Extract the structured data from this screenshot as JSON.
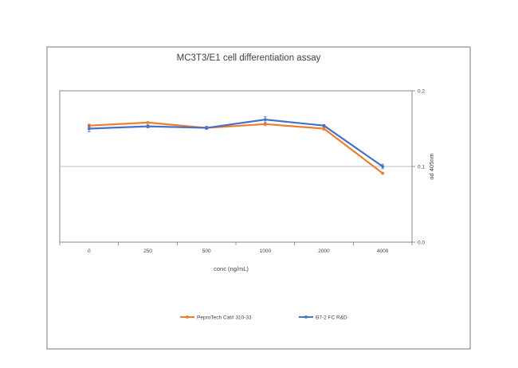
{
  "chart_data": {
    "type": "line",
    "title": "MC3T3/E1 cell differentiation assay",
    "xlabel": "conc (ng/mL)",
    "ylabel": "od 405nm",
    "categories": [
      "0",
      "250",
      "500",
      "1000",
      "2000",
      "4000"
    ],
    "y_ticks": [
      "0.0",
      "0.1",
      "0.2"
    ],
    "ylim": [
      0,
      0.2
    ],
    "y_axis_side": "right",
    "gridlines": [
      0.1
    ],
    "legend_position": "bottom",
    "series": [
      {
        "name": "PeproTech Cat# 310-33",
        "color": "#ED7D31",
        "values": [
          0.154,
          0.158,
          0.151,
          0.156,
          0.15,
          0.091
        ],
        "errors": [
          0.002,
          0.001,
          0.001,
          0.002,
          0.002,
          0.001
        ]
      },
      {
        "name": "B7-2 FC R&D",
        "color": "#4472C4",
        "values": [
          0.15,
          0.153,
          0.151,
          0.162,
          0.154,
          0.1
        ],
        "errors": [
          0.004,
          0.002,
          0.002,
          0.004,
          0.001,
          0.003
        ]
      }
    ]
  }
}
